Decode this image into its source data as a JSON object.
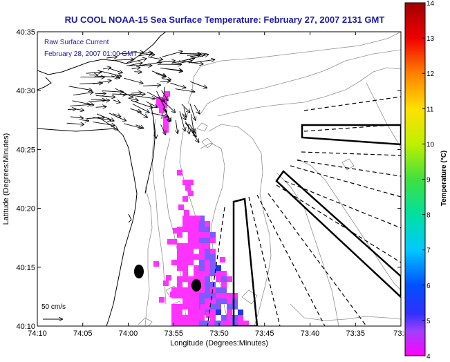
{
  "title": "RU COOL  NOAA-15  Sea Surface Temperature:  February 27, 2007 2131 GMT",
  "overlay": {
    "line1": "Raw Surface Current",
    "line2": "February 28, 2007 01:00 GMT"
  },
  "axes": {
    "xlabel": "Longitude (Degrees:Minutes)",
    "ylabel": "Latitude (Degrees:Minutes)",
    "xticks": [
      "74:10",
      "74:05",
      "74:00",
      "73:55",
      "73:50",
      "73:45",
      "73:40",
      "73:35",
      "73:3"
    ],
    "yticks": [
      "40:35",
      "40:30",
      "40:25",
      "40:20",
      "40:15",
      "40:10"
    ]
  },
  "scale_label": "50 cm/s",
  "colorbar": {
    "label": "Temperature (°C)",
    "ticks": [
      "14",
      "13",
      "12",
      "11",
      "10",
      "9",
      "8",
      "7",
      "6",
      "5",
      "4"
    ],
    "min": 4,
    "max": 14
  },
  "colors": {
    "title": "#1a1ab0",
    "overlay": "#1a1ab0",
    "sst_low": "#ff33ff",
    "sst_mid": "#7a5cff",
    "sst_high": "#2233ee"
  }
}
